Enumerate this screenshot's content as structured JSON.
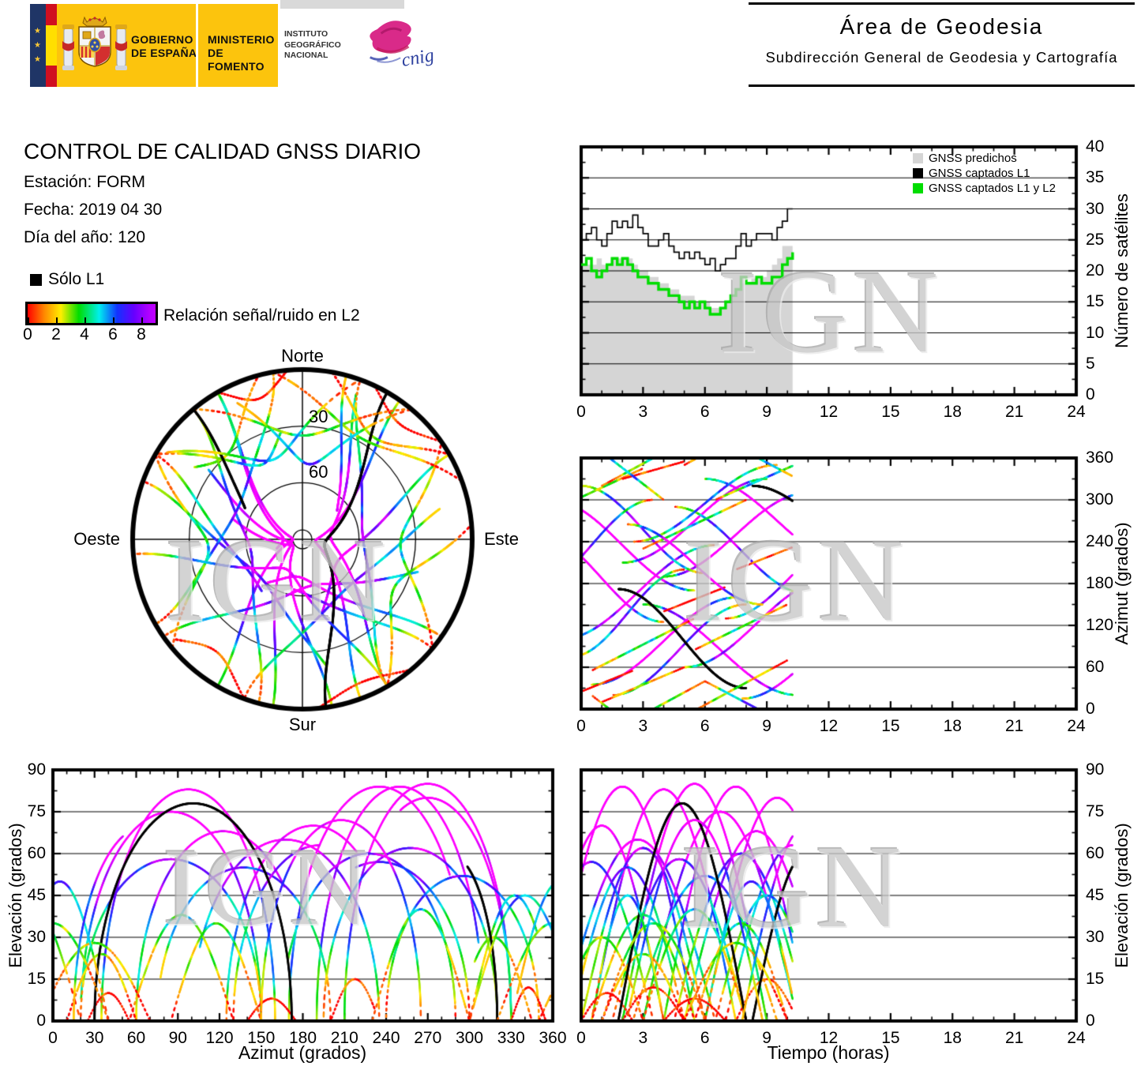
{
  "header": {
    "gobierno": "GOBIERNO\nDE ESPAÑA",
    "ministerio": "MINISTERIO\nDE FOMENTO",
    "instituto": "INSTITUTO\nGEOGRÁFICO\nNACIONAL",
    "cnig": "cnig",
    "area_title": "Área de Geodesia",
    "area_subtitle": "Subdirección General de Geodesia y Cartografía"
  },
  "report": {
    "title": "CONTROL DE CALIDAD GNSS DIARIO",
    "station": "Estación: FORM",
    "date": "Fecha: 2019 04 30",
    "doy": "Día del año: 120"
  },
  "legend": {
    "l1_only": "Sólo L1",
    "colorbar_label": "Relación señal/ruido en L2",
    "colorbar_ticks": [
      0,
      2,
      4,
      6,
      8
    ],
    "colorbar_max": 9
  },
  "watermark": "IGN",
  "skyplot_labels": {
    "north": "Norte",
    "south": "Sur",
    "east": "Este",
    "west": "Oeste",
    "ring_labels": [
      "30",
      "60"
    ]
  },
  "axes": {
    "sat_count_ylabel": "Número de satélites",
    "azimut_ylabel": "Azimut (grados)",
    "elev_ylabel": "Elevación (grados)",
    "azimut_xlabel": "Azimut (grados)",
    "tiempo_xlabel": "Tiempo (horas)"
  },
  "colors": {
    "band_gold": "#fcc40d",
    "eu_navy": "#1f3566",
    "flag_red": "#d00f20",
    "flag_yellow": "#ffdf00",
    "predicted_gray": "#d5d5d5",
    "captured_green": "#00dd00",
    "l1_only_black": "#000000",
    "watermark_gray": "#c7c7c7",
    "snr_palette": [
      [
        0,
        "#ff0000"
      ],
      [
        0.14,
        "#ff8800"
      ],
      [
        0.26,
        "#ffee00"
      ],
      [
        0.4,
        "#00dd00"
      ],
      [
        0.55,
        "#00eeee"
      ],
      [
        0.68,
        "#1133ff"
      ],
      [
        0.8,
        "#6600ff"
      ],
      [
        0.9,
        "#cc00ff"
      ],
      [
        1,
        "#ff00ff"
      ]
    ]
  },
  "chart_data": [
    {
      "id": "satellite-count",
      "type": "area",
      "title": "",
      "xlabel": "",
      "ylabel": "Número de satélites",
      "xlim": [
        0,
        24
      ],
      "ylim": [
        0,
        40
      ],
      "xticks": [
        0,
        3,
        6,
        9,
        12,
        15,
        18,
        21,
        24
      ],
      "yticks": [
        0,
        5,
        10,
        15,
        20,
        25,
        30,
        35,
        40
      ],
      "grid": "horizontal",
      "legend_position": "top-right-inside",
      "legend": [
        {
          "label": "GNSS predichos",
          "color": "#d5d5d5"
        },
        {
          "label": "GNSS captados L1",
          "color": "#000000"
        },
        {
          "label": "GNSS captados L1 y L2",
          "color": "#00dd00"
        }
      ],
      "t_start": 0,
      "t_step": 0.25,
      "t_end": 10.25,
      "series": [
        {
          "name": "GNSS predichos",
          "style": "area",
          "color": "#d5d5d5",
          "values": [
            21,
            21,
            21,
            22,
            21,
            21,
            22,
            22,
            22,
            22,
            21,
            20,
            20,
            19,
            19,
            18,
            18,
            17,
            17,
            16,
            16,
            16,
            15,
            15,
            15,
            14,
            14,
            14,
            15,
            16,
            17,
            18,
            18,
            19,
            19,
            19,
            20,
            21,
            22,
            24,
            24,
            24
          ]
        },
        {
          "name": "GNSS captados L1",
          "style": "step",
          "color": "#000000",
          "values": [
            25,
            26,
            27,
            25,
            24,
            26,
            28,
            27,
            28,
            27,
            29,
            27,
            26,
            24,
            24,
            25,
            26,
            24,
            23,
            22,
            23,
            22,
            23,
            22,
            21,
            22,
            20,
            21,
            22,
            22,
            24,
            26,
            24,
            25,
            26,
            26,
            26,
            25,
            27,
            28,
            30,
            30
          ]
        },
        {
          "name": "GNSS captados L1 y L2",
          "style": "step",
          "color": "#00dd00",
          "values": [
            21,
            22,
            20,
            19,
            20,
            21,
            22,
            21,
            22,
            21,
            20,
            19,
            19,
            18,
            18,
            17,
            17,
            16,
            16,
            15,
            14,
            15,
            14,
            15,
            14,
            13,
            13,
            14,
            15,
            16,
            17,
            19,
            18,
            18,
            19,
            18,
            18,
            19,
            19,
            21,
            22,
            23
          ]
        }
      ]
    },
    {
      "id": "skyplot",
      "type": "skyplot",
      "north_up": true,
      "east_right": true,
      "elevation_rings": [
        30,
        60
      ],
      "zenith_ring_elevation": 85,
      "tracks_ref": "satellite_tracks"
    },
    {
      "id": "azimuth-vs-time",
      "type": "line",
      "xlabel": "",
      "ylabel": "Azimut (grados)",
      "xlim": [
        0,
        24
      ],
      "ylim": [
        0,
        360
      ],
      "xticks": [
        0,
        3,
        6,
        9,
        12,
        15,
        18,
        21,
        24
      ],
      "yticks": [
        0,
        60,
        120,
        180,
        240,
        300,
        360
      ],
      "grid": "horizontal",
      "tracks_ref": "satellite_tracks"
    },
    {
      "id": "elevation-vs-azimuth",
      "type": "line",
      "xlabel": "Azimut (grados)",
      "ylabel": "Elevación (grados)",
      "xlim": [
        0,
        360
      ],
      "ylim": [
        0,
        90
      ],
      "xticks": [
        0,
        30,
        60,
        90,
        120,
        150,
        180,
        210,
        240,
        270,
        300,
        330,
        360
      ],
      "yticks": [
        0,
        15,
        30,
        45,
        60,
        75,
        90
      ],
      "grid": "horizontal",
      "tracks_ref": "satellite_tracks"
    },
    {
      "id": "elevation-vs-time",
      "type": "line",
      "xlabel": "Tiempo (horas)",
      "ylabel": "Elevación (grados)",
      "xlim": [
        0,
        24
      ],
      "ylim": [
        0,
        90
      ],
      "xticks": [
        0,
        3,
        6,
        9,
        12,
        15,
        18,
        21,
        24
      ],
      "yticks": [
        0,
        15,
        30,
        45,
        60,
        75,
        90
      ],
      "grid": "horizontal",
      "tracks_ref": "satellite_tracks"
    }
  ],
  "satellite_tracks": {
    "time_window": [
      0,
      10.25
    ],
    "snr_scale": [
      0,
      9
    ],
    "format": [
      "t_rise_h",
      "t_set_h",
      "az_rise_deg",
      "az_set_deg",
      "el_max_deg",
      "snr_bias",
      "l1_only"
    ],
    "tracks": [
      [
        -1.5,
        5.5,
        300,
        170,
        84,
        2.5,
        0
      ],
      [
        0.5,
        7.5,
        35,
        160,
        83,
        2.5,
        0
      ],
      [
        2,
        9,
        210,
        330,
        85,
        2.5,
        0
      ],
      [
        4,
        11,
        190,
        310,
        84,
        2.5,
        0
      ],
      [
        -2,
        4,
        250,
        125,
        70,
        2.0,
        0
      ],
      [
        3,
        10.5,
        150,
        20,
        75,
        2.2,
        0
      ],
      [
        6,
        13,
        330,
        210,
        80,
        2.4,
        0
      ],
      [
        -1,
        6.5,
        100,
        235,
        65,
        1.8,
        0
      ],
      [
        5,
        12,
        60,
        185,
        68,
        1.8,
        0
      ],
      [
        0,
        6,
        320,
        195,
        62,
        0.8,
        0
      ],
      [
        1.5,
        8,
        20,
        150,
        58,
        0.8,
        0
      ],
      [
        -0.5,
        5,
        75,
        200,
        55,
        0.6,
        0
      ],
      [
        4.5,
        11,
        290,
        165,
        60,
        0.7,
        0
      ],
      [
        2.5,
        9.5,
        240,
        350,
        52,
        0.5,
        0
      ],
      [
        7,
        13.5,
        130,
        255,
        63,
        0.9,
        0
      ],
      [
        -2.5,
        3.5,
        170,
        300,
        57,
        0.6,
        0
      ],
      [
        0.5,
        5.5,
        55,
        130,
        38,
        0,
        0
      ],
      [
        3,
        8,
        230,
        300,
        40,
        0,
        0
      ],
      [
        -1,
        3,
        290,
        345,
        30,
        -0.2,
        0
      ],
      [
        6.5,
        11.5,
        300,
        365,
        45,
        0.2,
        0
      ],
      [
        1,
        5,
        10,
        60,
        24,
        -0.3,
        0
      ],
      [
        5.5,
        10,
        85,
        150,
        35,
        0,
        0
      ],
      [
        0,
        2.5,
        25,
        55,
        10,
        -1,
        0
      ],
      [
        2,
        5,
        330,
        355,
        12,
        -1,
        0
      ],
      [
        7.5,
        10.5,
        200,
        235,
        15,
        -0.8,
        0
      ],
      [
        4,
        7,
        140,
        175,
        8,
        -1,
        0
      ],
      [
        1.8,
        8.0,
        172,
        30,
        78,
        0,
        1
      ],
      [
        8.3,
        13.5,
        320,
        250,
        60,
        0,
        1
      ],
      [
        1,
        6,
        320,
        400,
        35,
        -0.2,
        0
      ],
      [
        5,
        10,
        350,
        430,
        28,
        -0.3,
        0
      ],
      [
        0.5,
        4,
        20,
        -60,
        45,
        0.3,
        0
      ],
      [
        6,
        10.5,
        40,
        -30,
        50,
        0.5,
        0
      ],
      [
        2.2,
        8.8,
        265,
        150,
        72,
        1.5,
        0
      ],
      [
        7.8,
        14,
        15,
        120,
        70,
        2.0,
        0
      ]
    ]
  }
}
